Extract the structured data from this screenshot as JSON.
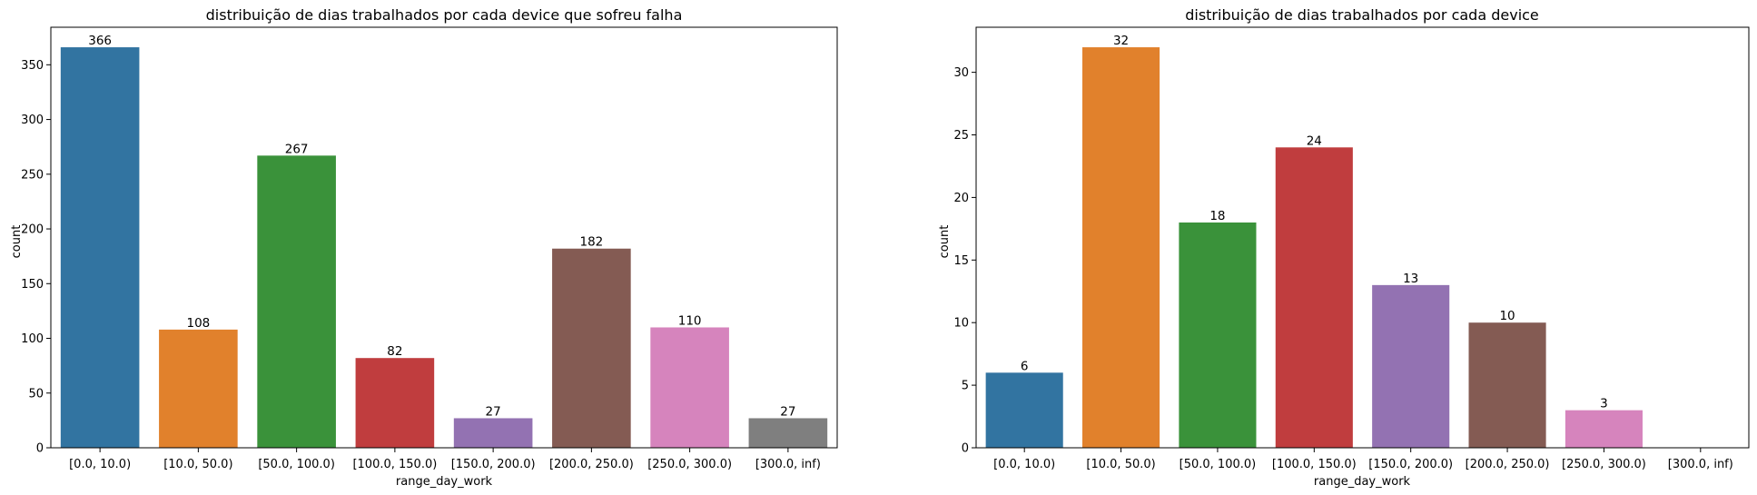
{
  "chart_data": [
    {
      "type": "bar",
      "title": "distribuição de dias trabalhados por cada device que sofreu falha",
      "xlabel": "range_day_work",
      "ylabel": "count",
      "categories": [
        "[0.0, 10.0)",
        "[10.0, 50.0)",
        "[50.0, 100.0)",
        "[100.0, 150.0)",
        "[150.0, 200.0)",
        "[200.0, 250.0)",
        "[250.0, 300.0)",
        "[300.0, inf)"
      ],
      "values": [
        366,
        108,
        267,
        82,
        27,
        182,
        110,
        27
      ],
      "data_labels": [
        "366",
        "108",
        "267",
        "82",
        "27",
        "182",
        "110",
        "27"
      ],
      "colors": [
        "#3274a1",
        "#e1812c",
        "#3a923a",
        "#c03d3e",
        "#9372b2",
        "#845b53",
        "#d684bd",
        "#7f7f7f"
      ],
      "ylim": [
        0,
        384.3
      ],
      "yticks": [
        0,
        50,
        100,
        150,
        200,
        250,
        300,
        350
      ],
      "ytick_labels": [
        "0",
        "50",
        "100",
        "150",
        "200",
        "250",
        "300",
        "350"
      ],
      "grid": false,
      "legend": "none"
    },
    {
      "type": "bar",
      "title": "distribuição de dias trabalhados por cada device",
      "xlabel": "range_day_work",
      "ylabel": "count",
      "categories": [
        "[0.0, 10.0)",
        "[10.0, 50.0)",
        "[50.0, 100.0)",
        "[100.0, 150.0)",
        "[150.0, 200.0)",
        "[200.0, 250.0)",
        "[250.0, 300.0)",
        "[300.0, inf)"
      ],
      "values": [
        6,
        32,
        18,
        24,
        13,
        10,
        3,
        0
      ],
      "data_labels": [
        "6",
        "32",
        "18",
        "24",
        "13",
        "10",
        "3",
        ""
      ],
      "colors": [
        "#3274a1",
        "#e1812c",
        "#3a923a",
        "#c03d3e",
        "#9372b2",
        "#845b53",
        "#d684bd",
        "#7f7f7f"
      ],
      "ylim": [
        0,
        33.6
      ],
      "yticks": [
        0,
        5,
        10,
        15,
        20,
        25,
        30
      ],
      "ytick_labels": [
        "0",
        "5",
        "10",
        "15",
        "20",
        "25",
        "30"
      ],
      "grid": false,
      "legend": "none"
    }
  ]
}
